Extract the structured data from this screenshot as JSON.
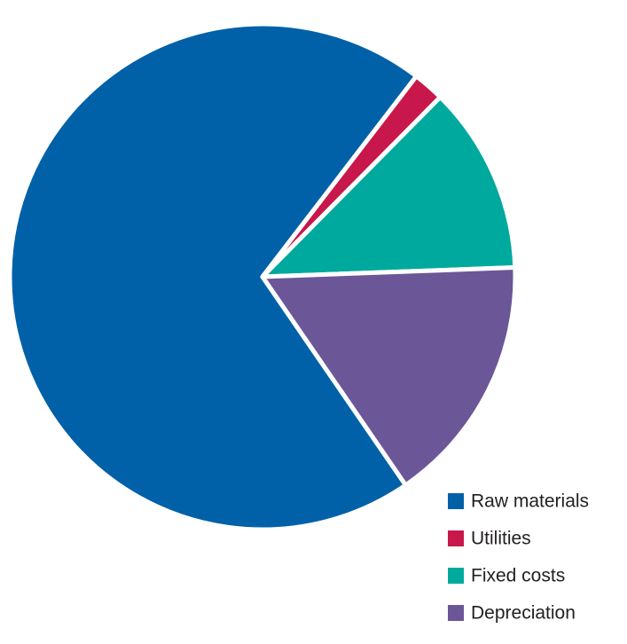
{
  "chart_data": {
    "type": "pie",
    "categories": [
      "Raw materials",
      "Utilities",
      "Fixed costs",
      "Depreciation"
    ],
    "values": [
      70,
      2,
      12,
      16
    ],
    "colors": [
      "#0061a8",
      "#c8174a",
      "#00a99d",
      "#6b5697"
    ],
    "legend": "bottom-right"
  }
}
